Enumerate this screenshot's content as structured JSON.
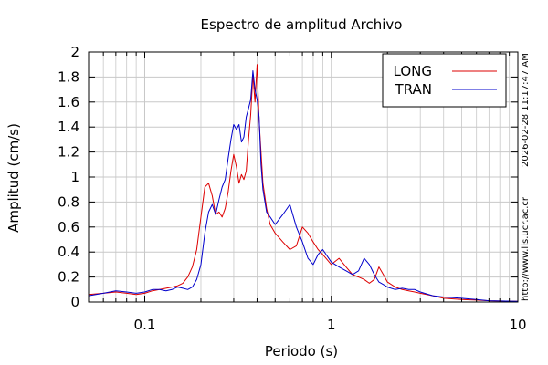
{
  "chart_data": {
    "type": "line",
    "title": "Espectro de amplitud Archivo",
    "xlabel": "Periodo (s)",
    "ylabel": "Amplitud (cm/s)",
    "xscale": "log",
    "xlim": [
      0.05,
      10
    ],
    "ylim": [
      0,
      2
    ],
    "xticks": [
      {
        "value": 0.1,
        "label": "0.1"
      },
      {
        "value": 1,
        "label": "1"
      },
      {
        "value": 10,
        "label": "10"
      }
    ],
    "yticks": [
      {
        "value": 0,
        "label": "0"
      },
      {
        "value": 0.2,
        "label": "0.2"
      },
      {
        "value": 0.4,
        "label": "0.4"
      },
      {
        "value": 0.6,
        "label": "0.6"
      },
      {
        "value": 0.8,
        "label": "0.8"
      },
      {
        "value": 1,
        "label": "1"
      },
      {
        "value": 1.2,
        "label": "1.2"
      },
      {
        "value": 1.4,
        "label": "1.4"
      },
      {
        "value": 1.6,
        "label": "1.6"
      },
      {
        "value": 1.8,
        "label": "1.8"
      },
      {
        "value": 2,
        "label": "2"
      }
    ],
    "grid": true,
    "legend_position": "top-right",
    "series": [
      {
        "name": "LONG",
        "color": "#dd0000",
        "x": [
          0.05,
          0.06,
          0.07,
          0.08,
          0.09,
          0.1,
          0.11,
          0.12,
          0.13,
          0.14,
          0.15,
          0.16,
          0.17,
          0.18,
          0.19,
          0.2,
          0.21,
          0.22,
          0.23,
          0.24,
          0.25,
          0.26,
          0.27,
          0.28,
          0.29,
          0.3,
          0.31,
          0.32,
          0.33,
          0.34,
          0.35,
          0.36,
          0.37,
          0.38,
          0.39,
          0.4,
          0.41,
          0.42,
          0.43,
          0.45,
          0.47,
          0.5,
          0.55,
          0.6,
          0.65,
          0.7,
          0.75,
          0.8,
          0.85,
          0.9,
          1.0,
          1.1,
          1.2,
          1.3,
          1.4,
          1.5,
          1.6,
          1.7,
          1.8,
          1.9,
          2.0,
          2.2,
          2.4,
          2.6,
          2.8,
          3.0,
          3.5,
          4.0,
          5.0,
          6.0,
          7.0,
          8.0,
          10.0
        ],
        "y": [
          0.06,
          0.07,
          0.08,
          0.07,
          0.06,
          0.07,
          0.09,
          0.1,
          0.11,
          0.12,
          0.13,
          0.15,
          0.2,
          0.28,
          0.42,
          0.68,
          0.92,
          0.95,
          0.85,
          0.7,
          0.72,
          0.68,
          0.75,
          0.88,
          1.05,
          1.18,
          1.08,
          0.95,
          1.02,
          0.98,
          1.05,
          1.3,
          1.5,
          1.82,
          1.6,
          1.9,
          1.45,
          1.2,
          0.95,
          0.75,
          0.62,
          0.55,
          0.48,
          0.42,
          0.45,
          0.6,
          0.55,
          0.48,
          0.42,
          0.38,
          0.3,
          0.35,
          0.28,
          0.22,
          0.2,
          0.18,
          0.15,
          0.18,
          0.28,
          0.22,
          0.16,
          0.12,
          0.1,
          0.09,
          0.08,
          0.07,
          0.05,
          0.03,
          0.02,
          0.015,
          0.01,
          0.008,
          0.005
        ]
      },
      {
        "name": "TRAN",
        "color": "#0000cc",
        "x": [
          0.05,
          0.06,
          0.07,
          0.08,
          0.09,
          0.1,
          0.11,
          0.12,
          0.13,
          0.14,
          0.15,
          0.16,
          0.17,
          0.18,
          0.19,
          0.2,
          0.21,
          0.22,
          0.23,
          0.24,
          0.25,
          0.26,
          0.27,
          0.28,
          0.29,
          0.3,
          0.31,
          0.32,
          0.33,
          0.34,
          0.35,
          0.36,
          0.37,
          0.38,
          0.39,
          0.4,
          0.41,
          0.42,
          0.43,
          0.45,
          0.47,
          0.5,
          0.55,
          0.6,
          0.65,
          0.7,
          0.75,
          0.8,
          0.85,
          0.9,
          1.0,
          1.1,
          1.2,
          1.3,
          1.4,
          1.5,
          1.6,
          1.7,
          1.8,
          1.9,
          2.0,
          2.2,
          2.4,
          2.6,
          2.8,
          3.0,
          3.5,
          4.0,
          5.0,
          6.0,
          7.0,
          8.0,
          10.0
        ],
        "y": [
          0.05,
          0.07,
          0.09,
          0.08,
          0.07,
          0.08,
          0.1,
          0.1,
          0.09,
          0.1,
          0.12,
          0.11,
          0.1,
          0.12,
          0.18,
          0.3,
          0.55,
          0.72,
          0.78,
          0.7,
          0.82,
          0.92,
          0.98,
          1.15,
          1.3,
          1.42,
          1.38,
          1.42,
          1.28,
          1.32,
          1.48,
          1.55,
          1.62,
          1.85,
          1.7,
          1.62,
          1.48,
          1.1,
          0.9,
          0.72,
          0.68,
          0.62,
          0.7,
          0.78,
          0.6,
          0.48,
          0.35,
          0.3,
          0.38,
          0.42,
          0.32,
          0.28,
          0.25,
          0.22,
          0.25,
          0.35,
          0.3,
          0.22,
          0.16,
          0.14,
          0.12,
          0.1,
          0.11,
          0.1,
          0.1,
          0.08,
          0.05,
          0.04,
          0.03,
          0.02,
          0.01,
          0.008,
          0.005
        ]
      }
    ]
  },
  "side_text_top": "2026-02-28 11:17:47 AM",
  "side_text_bottom": "http://www.lis.ucr.ac.cr"
}
